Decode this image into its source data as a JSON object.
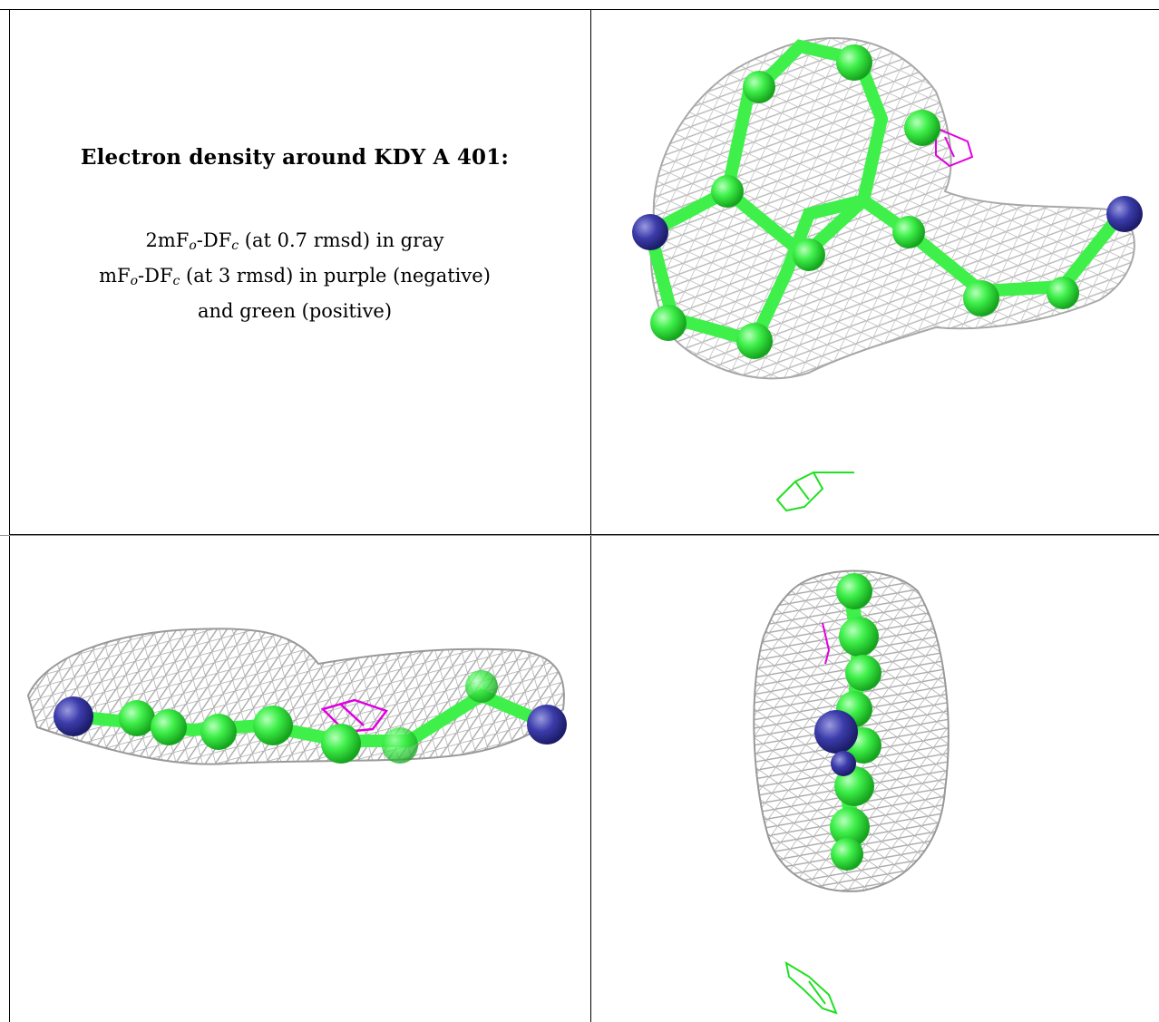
{
  "caption": {
    "title": "Electron density around KDY A 401:",
    "line1": {
      "prefix": "2mF",
      "sub1": "o",
      "mid": "-DF",
      "sub2": "c",
      "suffix": " (at 0.7 rmsd) in gray"
    },
    "line2": {
      "prefix": "mF",
      "sub1": "o",
      "mid": "-DF",
      "sub2": "c",
      "suffix": " (at 3 rmsd) in purple (negative)"
    },
    "line3": "and green (positive)"
  },
  "colors": {
    "mesh": "#bdbdbd",
    "carbon": "#3ff04a",
    "nitrogen": "#3c3cab",
    "negative": "#e000e0",
    "positive": "#22e022"
  }
}
